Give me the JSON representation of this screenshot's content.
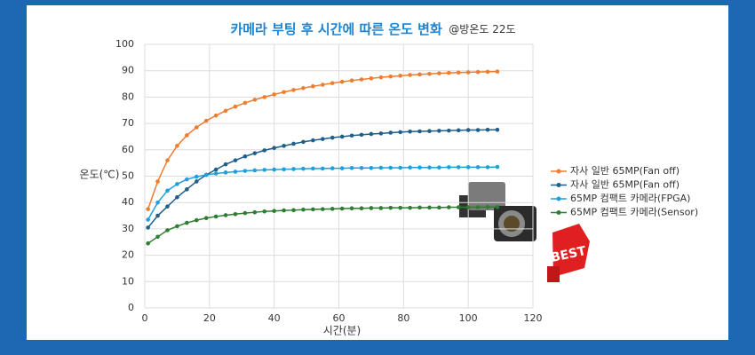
{
  "chart_data": {
    "type": "line",
    "title": "카메라 부팅 후 시간에 따른 온도 변화",
    "subtitle": "@방온도 22도",
    "x_label": "시간(분)",
    "y_label": "온도(℃)",
    "x": [
      1,
      4,
      7,
      10,
      13,
      16,
      19,
      22,
      25,
      28,
      31,
      34,
      37,
      40,
      43,
      46,
      49,
      52,
      55,
      58,
      61,
      64,
      67,
      70,
      73,
      76,
      79,
      82,
      85,
      88,
      91,
      94,
      97,
      100,
      103,
      106,
      109
    ],
    "series": [
      {
        "name": "자사 일반 65MP(Fan off)",
        "color": "#ed7d31",
        "values": [
          37.5,
          48,
          56,
          61.5,
          65.5,
          68.5,
          71,
          73,
          74.8,
          76.4,
          77.8,
          79,
          80,
          81,
          81.9,
          82.7,
          83.4,
          84.1,
          84.7,
          85.3,
          85.8,
          86.3,
          86.7,
          87.1,
          87.5,
          87.8,
          88.1,
          88.4,
          88.6,
          88.8,
          89,
          89.2,
          89.3,
          89.4,
          89.5,
          89.6,
          89.7
        ]
      },
      {
        "name": "자사 일반 65MP(Fan off)",
        "color": "#1f5f8b",
        "values": [
          30.5,
          35,
          38.5,
          42,
          45,
          48,
          50.5,
          52.5,
          54.5,
          56,
          57.5,
          58.7,
          59.8,
          60.7,
          61.5,
          62.3,
          63,
          63.6,
          64.1,
          64.6,
          65,
          65.4,
          65.7,
          66,
          66.2,
          66.5,
          66.7,
          66.9,
          67,
          67.1,
          67.2,
          67.3,
          67.4,
          67.5,
          67.5,
          67.6,
          67.6
        ]
      },
      {
        "name": "65MP 컴팩트 카메라(FPGA)",
        "color": "#1fa0dc",
        "values": [
          33.5,
          40,
          44.5,
          47,
          48.8,
          49.8,
          50.5,
          51,
          51.4,
          51.7,
          52,
          52.2,
          52.4,
          52.5,
          52.6,
          52.7,
          52.8,
          52.9,
          52.9,
          53,
          53,
          53.1,
          53.1,
          53.1,
          53.2,
          53.2,
          53.2,
          53.3,
          53.3,
          53.3,
          53.3,
          53.4,
          53.4,
          53.4,
          53.4,
          53.4,
          53.5
        ]
      },
      {
        "name": "65MP 컴팩트 카메라(Sensor)",
        "color": "#2e7d32",
        "values": [
          24.5,
          27,
          29.5,
          31,
          32.3,
          33.3,
          34.1,
          34.7,
          35.2,
          35.6,
          36,
          36.3,
          36.6,
          36.8,
          37,
          37.1,
          37.3,
          37.4,
          37.5,
          37.6,
          37.7,
          37.8,
          37.8,
          37.9,
          37.9,
          38,
          38,
          38,
          38.1,
          38.1,
          38.1,
          38.2,
          38.2,
          38.2,
          38.2,
          38.3,
          38.3
        ]
      }
    ],
    "xlim": [
      0,
      120
    ],
    "xticks": [
      0,
      20,
      40,
      60,
      80,
      100,
      120
    ],
    "ylim": [
      0,
      100
    ],
    "yticks": [
      0,
      10,
      20,
      30,
      40,
      50,
      60,
      70,
      80,
      90,
      100
    ],
    "grid": true,
    "legend": "right"
  }
}
